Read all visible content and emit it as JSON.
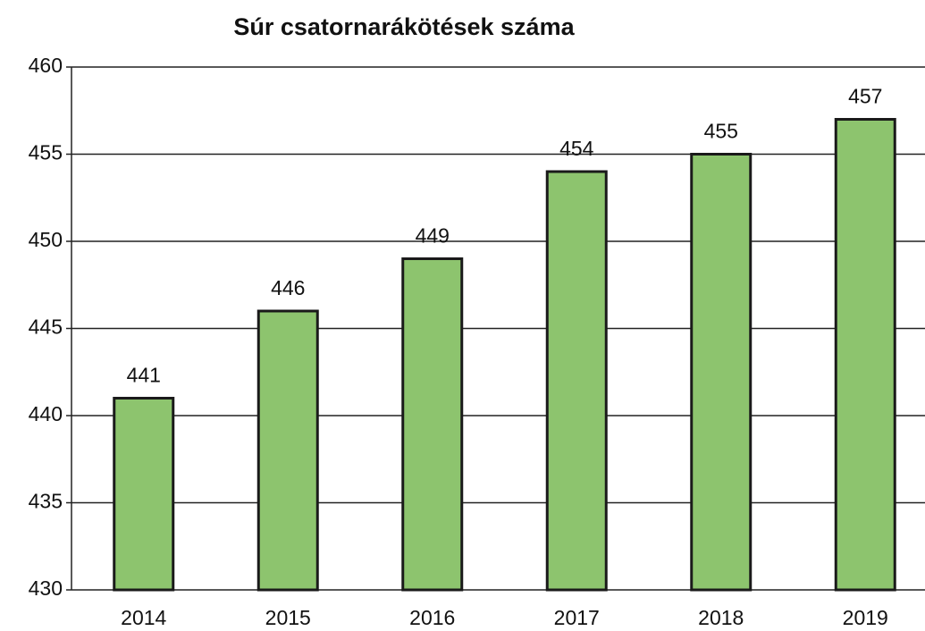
{
  "chart_data": {
    "type": "bar",
    "title": "Súr csatornarákötések száma",
    "categories": [
      "2014",
      "2015",
      "2016",
      "2017",
      "2018",
      "2019"
    ],
    "values": [
      441,
      446,
      449,
      454,
      455,
      457
    ],
    "color": "#8dc46e",
    "ylim": [
      430,
      460
    ],
    "yticks": [
      430,
      435,
      440,
      445,
      450,
      455,
      460
    ],
    "grid": true
  }
}
